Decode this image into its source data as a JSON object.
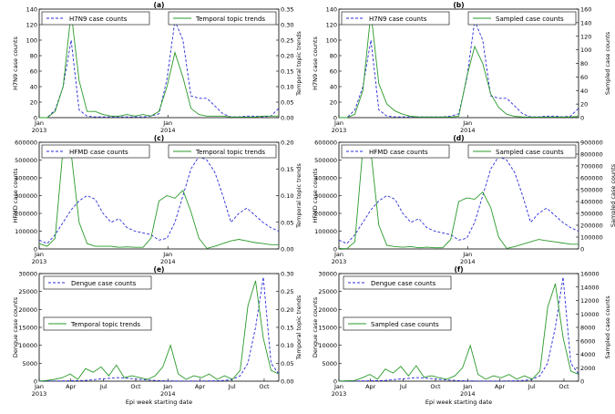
{
  "chart_data": [
    {
      "id": "a",
      "type": "line",
      "panel_label": "(a)",
      "xlabel": "",
      "ylabel_left": "H7N9 case counts",
      "ylabel_right": "Temporal topic trends",
      "ylim_left": [
        0,
        140
      ],
      "yticks_left": [
        "0",
        "20",
        "40",
        "60",
        "80",
        "100",
        "120",
        "140"
      ],
      "ylim_right": [
        0,
        0.35
      ],
      "yticks_right": [
        "0.00",
        "0.05",
        "0.10",
        "0.15",
        "0.20",
        "0.25",
        "0.30",
        "0.35"
      ],
      "x_tick_labels": [
        [
          "Jan",
          "2013"
        ],
        [
          "Jan",
          "2014"
        ]
      ],
      "legend_left": "H7N9 case counts",
      "legend_right": "Temporal topic trends",
      "series": [
        {
          "name": "H7N9 case counts",
          "axis": "left",
          "style": "dashed",
          "color": "#2b2bd9",
          "values": [
            0,
            0,
            10,
            40,
            100,
            10,
            2,
            1,
            1,
            1,
            1,
            1,
            1,
            1,
            2,
            5,
            50,
            125,
            100,
            28,
            25,
            25,
            15,
            5,
            1,
            1,
            2,
            2,
            1,
            2,
            12
          ]
        },
        {
          "name": "Temporal topic trends",
          "axis": "right",
          "style": "solid",
          "color": "#2a9a2a",
          "values": [
            0,
            0,
            0.02,
            0.1,
            0.34,
            0.12,
            0.02,
            0.02,
            0.01,
            0.005,
            0.005,
            0.01,
            0.005,
            0.01,
            0.005,
            0.02,
            0.1,
            0.21,
            0.13,
            0.03,
            0.01,
            0.005,
            0.005,
            0.005,
            0.002,
            0.002,
            0.002,
            0.002,
            0.005,
            0.005,
            0.005
          ]
        }
      ]
    },
    {
      "id": "b",
      "type": "line",
      "panel_label": "(b)",
      "xlabel": "",
      "ylabel_left": "H7N9 case counts",
      "ylabel_right": "Sampled case counts",
      "ylim_left": [
        0,
        140
      ],
      "yticks_left": [
        "0",
        "20",
        "40",
        "60",
        "80",
        "100",
        "120",
        "140"
      ],
      "ylim_right": [
        0,
        160
      ],
      "yticks_right": [
        "0",
        "20",
        "40",
        "60",
        "80",
        "100",
        "120",
        "140",
        "160"
      ],
      "x_tick_labels": [
        [
          "Jan",
          "2013"
        ],
        [
          "Jan",
          "2014"
        ]
      ],
      "legend_left": "H7N9 case counts",
      "legend_right": "Sampled case counts",
      "series": [
        {
          "name": "H7N9 case counts",
          "axis": "left",
          "style": "dashed",
          "color": "#2b2bd9",
          "values": [
            0,
            0,
            10,
            40,
            100,
            10,
            2,
            1,
            1,
            1,
            1,
            1,
            1,
            1,
            2,
            5,
            50,
            125,
            100,
            28,
            25,
            25,
            15,
            5,
            1,
            1,
            2,
            2,
            1,
            2,
            12
          ]
        },
        {
          "name": "Sampled case counts",
          "axis": "right",
          "style": "solid",
          "color": "#2a9a2a",
          "values": [
            0,
            0,
            5,
            40,
            155,
            50,
            20,
            10,
            5,
            2,
            1,
            1,
            1,
            1,
            1,
            2,
            60,
            105,
            80,
            35,
            15,
            5,
            2,
            1,
            1,
            1,
            1,
            1,
            1,
            1,
            2
          ]
        }
      ]
    },
    {
      "id": "c",
      "type": "line",
      "panel_label": "(c)",
      "xlabel": "",
      "ylabel_left": "HFMD case counts",
      "ylabel_right": "Temporal topic trends",
      "ylim_left": [
        0,
        600000
      ],
      "yticks_left": [
        "0",
        "100000",
        "200000",
        "300000",
        "400000",
        "500000",
        "600000"
      ],
      "ylim_right": [
        0,
        0.2
      ],
      "yticks_right": [
        "0.00",
        "0.05",
        "0.10",
        "0.15",
        "0.20"
      ],
      "x_tick_labels": [
        [
          "Jan",
          "2013"
        ],
        [
          "Jan",
          "2014"
        ]
      ],
      "legend_left": "HFMD case counts",
      "legend_right": "Temporal topic trends",
      "series": [
        {
          "name": "HFMD case counts",
          "axis": "left",
          "style": "dashed",
          "color": "#2b2bd9",
          "values": [
            50000,
            30000,
            80000,
            150000,
            220000,
            270000,
            300000,
            280000,
            200000,
            150000,
            170000,
            120000,
            100000,
            90000,
            80000,
            50000,
            60000,
            150000,
            300000,
            450000,
            520000,
            500000,
            430000,
            300000,
            150000,
            200000,
            230000,
            190000,
            150000,
            120000,
            100000
          ]
        },
        {
          "name": "Temporal topic trends",
          "axis": "right",
          "style": "solid",
          "color": "#2a9a2a",
          "values": [
            0.01,
            0.005,
            0.02,
            0.19,
            0.18,
            0.05,
            0.01,
            0.005,
            0.005,
            0.005,
            0.003,
            0.004,
            0.003,
            0.003,
            0.02,
            0.09,
            0.1,
            0.095,
            0.11,
            0.07,
            0.02,
            0.001,
            0.005,
            0.01,
            0.015,
            0.018,
            0.015,
            0.012,
            0.01,
            0.008,
            0.008
          ]
        }
      ]
    },
    {
      "id": "d",
      "type": "line",
      "panel_label": "(d)",
      "xlabel": "",
      "ylabel_left": "HFMD case counts",
      "ylabel_right": "Sampled case counts",
      "ylim_left": [
        0,
        600000
      ],
      "yticks_left": [
        "0",
        "100000",
        "200000",
        "300000",
        "400000",
        "500000",
        "600000"
      ],
      "ylim_right": [
        0,
        900000
      ],
      "yticks_right": [
        "0",
        "100000",
        "200000",
        "300000",
        "400000",
        "500000",
        "600000",
        "700000",
        "800000",
        "900000"
      ],
      "x_tick_labels": [
        [
          "Jan",
          "2013"
        ],
        [
          "Jan",
          "2014"
        ]
      ],
      "legend_left": "HFMD case counts",
      "legend_right": "Sampled case counts",
      "series": [
        {
          "name": "HFMD case counts",
          "axis": "left",
          "style": "dashed",
          "color": "#2b2bd9",
          "values": [
            50000,
            30000,
            80000,
            150000,
            220000,
            270000,
            300000,
            280000,
            200000,
            150000,
            170000,
            120000,
            100000,
            90000,
            80000,
            50000,
            60000,
            150000,
            300000,
            450000,
            520000,
            500000,
            430000,
            300000,
            150000,
            200000,
            230000,
            190000,
            150000,
            120000,
            100000
          ]
        },
        {
          "name": "Sampled case counts",
          "axis": "right",
          "style": "solid",
          "color": "#2a9a2a",
          "values": [
            5000,
            2000,
            60000,
            850000,
            820000,
            200000,
            30000,
            20000,
            15000,
            20000,
            10000,
            15000,
            10000,
            10000,
            80000,
            400000,
            430000,
            420000,
            480000,
            350000,
            100000,
            5000,
            20000,
            40000,
            60000,
            80000,
            70000,
            60000,
            50000,
            40000,
            40000
          ]
        }
      ]
    },
    {
      "id": "e",
      "type": "line",
      "panel_label": "(e)",
      "xlabel": "Epi week starting date",
      "ylabel_left": "Dengue case counts",
      "ylabel_right": "Temporal topic trends",
      "ylim_left": [
        0,
        30000
      ],
      "yticks_left": [
        "0",
        "5000",
        "10000",
        "15000",
        "20000",
        "25000",
        "30000"
      ],
      "ylim_right": [
        0,
        0.3
      ],
      "yticks_right": [
        "0.00",
        "0.05",
        "0.10",
        "0.15",
        "0.20",
        "0.25",
        "0.30"
      ],
      "x_tick_labels": [
        [
          "Jan",
          "2013"
        ],
        [
          "Apr",
          ""
        ],
        [
          "Jul",
          ""
        ],
        [
          "Oct",
          ""
        ],
        [
          "Jan",
          "2014"
        ],
        [
          "Apr",
          ""
        ],
        [
          "Jul",
          ""
        ],
        [
          "Oct",
          ""
        ]
      ],
      "legend_left": "Dengue case counts",
      "legend_right": "Temporal topic trends",
      "series": [
        {
          "name": "Dengue case counts",
          "axis": "left",
          "style": "dashed",
          "color": "#2b2bd9",
          "values": [
            50,
            50,
            50,
            80,
            100,
            150,
            200,
            400,
            600,
            800,
            1000,
            900,
            700,
            500,
            300,
            200,
            100,
            80,
            60,
            60,
            50,
            60,
            80,
            100,
            200,
            500,
            1500,
            5000,
            15000,
            29000,
            5000,
            2000
          ]
        },
        {
          "name": "Temporal topic trends",
          "axis": "right",
          "style": "solid",
          "color": "#2a9a2a",
          "values": [
            0,
            0.002,
            0.005,
            0.01,
            0.02,
            0.005,
            0.035,
            0.025,
            0.04,
            0.015,
            0.045,
            0.01,
            0.015,
            0.01,
            0.005,
            0.015,
            0.04,
            0.1,
            0.02,
            0.005,
            0.015,
            0.01,
            0.02,
            0.005,
            0.015,
            0.005,
            0.03,
            0.21,
            0.28,
            0.12,
            0.03,
            0.02
          ]
        }
      ]
    },
    {
      "id": "f",
      "type": "line",
      "panel_label": "(f)",
      "xlabel": "Epi week starting date",
      "ylabel_left": "Dengue case counts",
      "ylabel_right": "Sampled case counts",
      "ylim_left": [
        0,
        30000
      ],
      "yticks_left": [
        "0",
        "5000",
        "10000",
        "15000",
        "20000",
        "25000",
        "30000"
      ],
      "ylim_right": [
        0,
        16000
      ],
      "yticks_right": [
        "0",
        "2000",
        "4000",
        "6000",
        "8000",
        "10000",
        "12000",
        "14000",
        "16000"
      ],
      "x_tick_labels": [
        [
          "Jan",
          "2013"
        ],
        [
          "Apr",
          ""
        ],
        [
          "Jul",
          ""
        ],
        [
          "Oct",
          ""
        ],
        [
          "Jan",
          "2014"
        ],
        [
          "Apr",
          ""
        ],
        [
          "Jul",
          ""
        ],
        [
          "Oct",
          ""
        ]
      ],
      "legend_left": "Dengue case counts",
      "legend_right": "Sampled case counts",
      "series": [
        {
          "name": "Dengue case counts",
          "axis": "left",
          "style": "dashed",
          "color": "#2b2bd9",
          "values": [
            50,
            50,
            50,
            80,
            100,
            150,
            200,
            400,
            600,
            800,
            1000,
            900,
            700,
            500,
            300,
            200,
            100,
            80,
            60,
            60,
            50,
            60,
            80,
            100,
            200,
            500,
            1500,
            5000,
            15000,
            29000,
            5000,
            2000
          ]
        },
        {
          "name": "Sampled case counts",
          "axis": "right",
          "style": "solid",
          "color": "#2a9a2a",
          "values": [
            0,
            50,
            100,
            500,
            1000,
            300,
            1800,
            1200,
            2200,
            800,
            2300,
            600,
            800,
            500,
            300,
            800,
            2000,
            5300,
            1000,
            300,
            800,
            500,
            1000,
            300,
            800,
            300,
            1500,
            11000,
            14500,
            6500,
            1500,
            1000
          ]
        }
      ]
    }
  ]
}
